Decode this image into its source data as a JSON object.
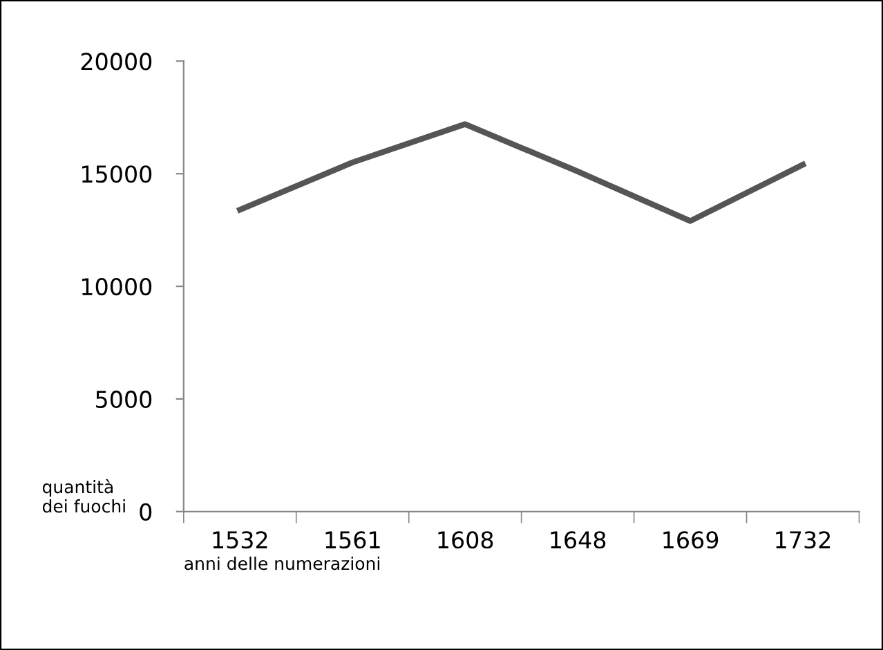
{
  "chart_data": {
    "type": "line",
    "categories": [
      "1532",
      "1561",
      "1608",
      "1648",
      "1669",
      "1732"
    ],
    "series": [
      {
        "color": "#555555",
        "values": [
          13400,
          15500,
          17200,
          15100,
          12900,
          15400
        ]
      }
    ],
    "ylim": [
      0,
      20000
    ],
    "yticks": [
      0,
      5000,
      10000,
      15000,
      20000
    ],
    "xlabel": "anni delle numerazioni",
    "ylabel": "quantità dei fuochi",
    "grid": false,
    "legend": false,
    "marker": "none",
    "line_style": "solid"
  }
}
